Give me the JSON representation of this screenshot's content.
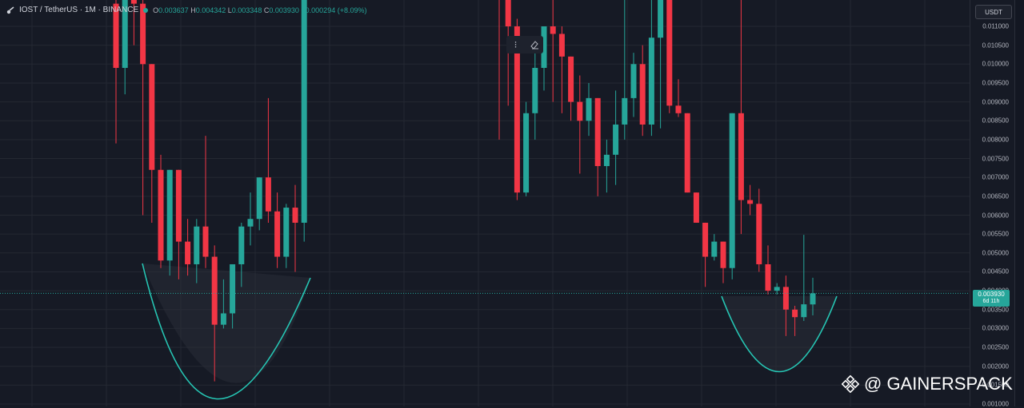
{
  "legend": {
    "symbol": "IOST / TetherUS · 1M · BINANCE",
    "open_label": "O",
    "open": "0.003637",
    "high_label": "H",
    "high": "0.004342",
    "low_label": "L",
    "low": "0.003348",
    "close_label": "C",
    "close": "0.003930",
    "change": "+0.000294 (+8.09%)"
  },
  "currency": "USDT",
  "last_price": {
    "value": "0.003930",
    "countdown": "6d 11h"
  },
  "watermark": "@ GAINERSPACK",
  "colors": {
    "up": "#26a69a",
    "down": "#f23645",
    "background": "#161a25",
    "grid": "#242832",
    "curve": "#26c6b4"
  },
  "chart_data": {
    "type": "candlestick",
    "y_axis": {
      "ylim": [
        0.001,
        0.0113
      ],
      "tick_values": [
        0.011,
        0.0105,
        0.01,
        0.0095,
        0.009,
        0.0085,
        0.008,
        0.0075,
        0.007,
        0.0065,
        0.006,
        0.0055,
        0.005,
        0.0045,
        0.004,
        0.0035,
        0.003,
        0.0025,
        0.002,
        0.0015,
        0.001
      ],
      "tick_labels": [
        "0.011000",
        "0.010500",
        "0.010000",
        "0.009500",
        "0.009000",
        "0.008500",
        "0.008000",
        "0.007500",
        "0.007000",
        "0.006500",
        "0.006000",
        "0.005500",
        "0.005000",
        "0.004500",
        "0.004000",
        "0.003500",
        "0.003000",
        "0.002500",
        "0.002000",
        "0.001500",
        "0.001000"
      ]
    },
    "last_value": 0.00393,
    "candles": [
      {
        "o": 0.0116,
        "h": 0.0118,
        "l": 0.0079,
        "c": 0.0099
      },
      {
        "o": 0.0099,
        "h": 0.0118,
        "l": 0.0092,
        "c": 0.0118
      },
      {
        "o": 0.0118,
        "h": 0.0118,
        "l": 0.0105,
        "c": 0.0116
      },
      {
        "o": 0.0116,
        "h": 0.0118,
        "l": 0.006,
        "c": 0.01
      },
      {
        "o": 0.01,
        "h": 0.01,
        "l": 0.0058,
        "c": 0.0072
      },
      {
        "o": 0.0072,
        "h": 0.0076,
        "l": 0.0046,
        "c": 0.0048
      },
      {
        "o": 0.0048,
        "h": 0.0072,
        "l": 0.0044,
        "c": 0.0072
      },
      {
        "o": 0.0072,
        "h": 0.0072,
        "l": 0.0043,
        "c": 0.0053
      },
      {
        "o": 0.0053,
        "h": 0.0059,
        "l": 0.0044,
        "c": 0.0047
      },
      {
        "o": 0.0047,
        "h": 0.0059,
        "l": 0.0042,
        "c": 0.0057
      },
      {
        "o": 0.0057,
        "h": 0.0081,
        "l": 0.0046,
        "c": 0.0049
      },
      {
        "o": 0.0049,
        "h": 0.0052,
        "l": 0.0016,
        "c": 0.0031
      },
      {
        "o": 0.0031,
        "h": 0.0043,
        "l": 0.003,
        "c": 0.0034
      },
      {
        "o": 0.0034,
        "h": 0.0047,
        "l": 0.003,
        "c": 0.0047
      },
      {
        "o": 0.0047,
        "h": 0.0058,
        "l": 0.0041,
        "c": 0.0057
      },
      {
        "o": 0.0057,
        "h": 0.0066,
        "l": 0.0052,
        "c": 0.0059
      },
      {
        "o": 0.0059,
        "h": 0.007,
        "l": 0.0056,
        "c": 0.007
      },
      {
        "o": 0.007,
        "h": 0.0091,
        "l": 0.0058,
        "c": 0.0061
      },
      {
        "o": 0.0061,
        "h": 0.0066,
        "l": 0.0046,
        "c": 0.0049
      },
      {
        "o": 0.0049,
        "h": 0.0063,
        "l": 0.0046,
        "c": 0.0062
      },
      {
        "o": 0.0062,
        "h": 0.0068,
        "l": 0.0045,
        "c": 0.0058
      },
      {
        "o": 0.0058,
        "h": 0.0118,
        "l": 0.0053,
        "c": 0.0118
      },
      {
        "o": 0.0118,
        "h": 0.0118,
        "l": 0.008,
        "c": 0.0117
      },
      {
        "o": 0.0117,
        "h": 0.0118,
        "l": 0.0089,
        "c": 0.011
      },
      {
        "o": 0.011,
        "h": 0.0112,
        "l": 0.0064,
        "c": 0.0066
      },
      {
        "o": 0.0066,
        "h": 0.009,
        "l": 0.0065,
        "c": 0.0087
      },
      {
        "o": 0.0087,
        "h": 0.0104,
        "l": 0.008,
        "c": 0.0099
      },
      {
        "o": 0.0099,
        "h": 0.011,
        "l": 0.0093,
        "c": 0.011
      },
      {
        "o": 0.011,
        "h": 0.0118,
        "l": 0.009,
        "c": 0.0108
      },
      {
        "o": 0.0108,
        "h": 0.011,
        "l": 0.0087,
        "c": 0.0102
      },
      {
        "o": 0.0102,
        "h": 0.0102,
        "l": 0.0085,
        "c": 0.009
      },
      {
        "o": 0.009,
        "h": 0.0097,
        "l": 0.0071,
        "c": 0.0085
      },
      {
        "o": 0.0085,
        "h": 0.0095,
        "l": 0.0081,
        "c": 0.0091
      },
      {
        "o": 0.0091,
        "h": 0.0091,
        "l": 0.0065,
        "c": 0.0073
      },
      {
        "o": 0.0073,
        "h": 0.008,
        "l": 0.0066,
        "c": 0.0076
      },
      {
        "o": 0.0076,
        "h": 0.0093,
        "l": 0.0068,
        "c": 0.0084
      },
      {
        "o": 0.0084,
        "h": 0.0118,
        "l": 0.008,
        "c": 0.0091
      },
      {
        "o": 0.0091,
        "h": 0.0103,
        "l": 0.0086,
        "c": 0.01
      },
      {
        "o": 0.01,
        "h": 0.0105,
        "l": 0.0081,
        "c": 0.0084
      },
      {
        "o": 0.0084,
        "h": 0.0118,
        "l": 0.0081,
        "c": 0.0107
      },
      {
        "o": 0.0107,
        "h": 0.0118,
        "l": 0.0083,
        "c": 0.0118
      },
      {
        "o": 0.0118,
        "h": 0.0118,
        "l": 0.0087,
        "c": 0.0089
      },
      {
        "o": 0.0089,
        "h": 0.0096,
        "l": 0.0086,
        "c": 0.0087
      },
      {
        "o": 0.0087,
        "h": 0.0087,
        "l": 0.0066,
        "c": 0.0066
      },
      {
        "o": 0.0066,
        "h": 0.0066,
        "l": 0.0058,
        "c": 0.0058
      },
      {
        "o": 0.0058,
        "h": 0.0058,
        "l": 0.0041,
        "c": 0.0049
      },
      {
        "o": 0.0049,
        "h": 0.0055,
        "l": 0.0048,
        "c": 0.0053
      },
      {
        "o": 0.0053,
        "h": 0.0053,
        "l": 0.0042,
        "c": 0.0046
      },
      {
        "o": 0.0046,
        "h": 0.0087,
        "l": 0.0043,
        "c": 0.0087
      },
      {
        "o": 0.0087,
        "h": 0.0118,
        "l": 0.0055,
        "c": 0.0064
      },
      {
        "o": 0.0064,
        "h": 0.0068,
        "l": 0.006,
        "c": 0.0063
      },
      {
        "o": 0.0063,
        "h": 0.0067,
        "l": 0.0045,
        "c": 0.0047
      },
      {
        "o": 0.0047,
        "h": 0.0052,
        "l": 0.0039,
        "c": 0.004
      },
      {
        "o": 0.004,
        "h": 0.0042,
        "l": 0.0039,
        "c": 0.0041
      },
      {
        "o": 0.0041,
        "h": 0.0044,
        "l": 0.0028,
        "c": 0.0035
      },
      {
        "o": 0.0035,
        "h": 0.0036,
        "l": 0.0028,
        "c": 0.0033
      },
      {
        "o": 0.0033,
        "h": 0.00548,
        "l": 0.0032,
        "c": 0.00364
      },
      {
        "o": 0.003637,
        "h": 0.004342,
        "l": 0.003348,
        "c": 0.00393
      }
    ]
  }
}
